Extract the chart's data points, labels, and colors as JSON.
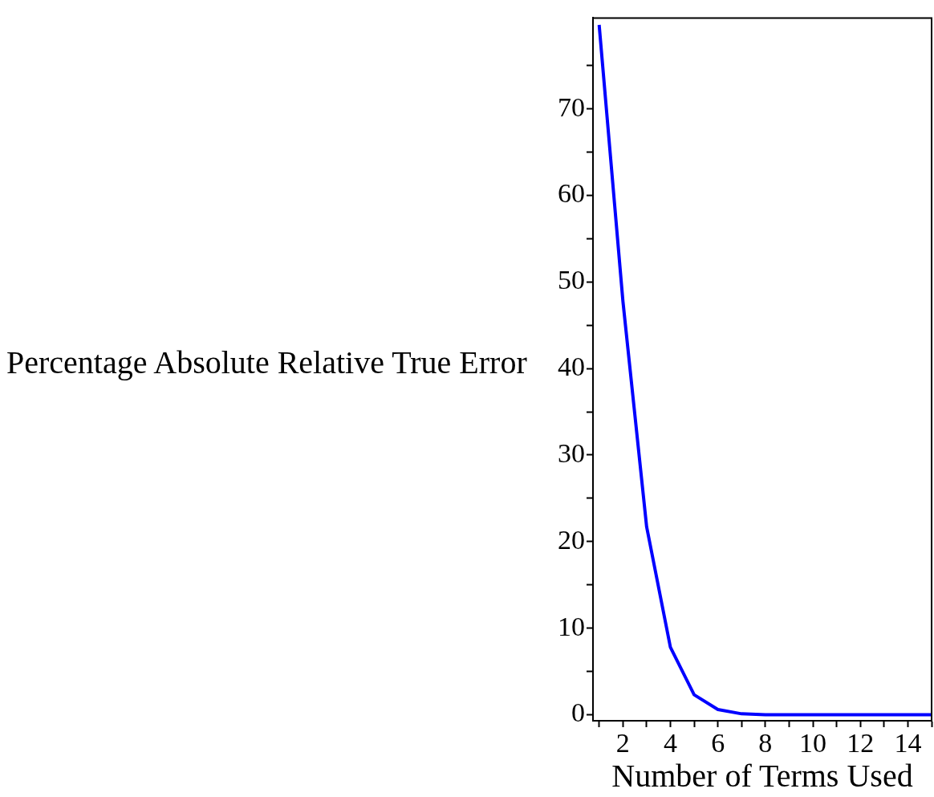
{
  "chart_data": {
    "type": "line",
    "xlabel": "Number of Terms Used",
    "ylabel": "Percentage Absolute Relative True Error",
    "x": [
      1,
      2,
      3,
      4,
      5,
      6,
      7,
      8,
      9,
      10,
      11,
      12,
      13,
      14,
      15
    ],
    "series": [
      {
        "color": "#0000ff",
        "values": [
          79.7,
          47.8,
          21.7,
          7.8,
          2.3,
          0.6,
          0.1,
          0,
          0,
          0,
          0,
          0,
          0,
          0,
          0
        ]
      }
    ],
    "xlim": [
      0.74,
      15
    ],
    "ylim": [
      -0.7,
      80.5
    ],
    "xticks": [
      {
        "value": 1,
        "label": null
      },
      2,
      {
        "value": 3,
        "label": null
      },
      4,
      {
        "value": 5,
        "label": null
      },
      6,
      {
        "value": 7,
        "label": null
      },
      8,
      {
        "value": 9,
        "label": null
      },
      10,
      {
        "value": 11,
        "label": null
      },
      12,
      {
        "value": 13,
        "label": null
      },
      14,
      {
        "value": 15,
        "label": null
      }
    ],
    "yticks": [
      0,
      {
        "value": 5,
        "label": null
      },
      10,
      {
        "value": 15,
        "label": null
      },
      20,
      {
        "value": 25,
        "label": null
      },
      30,
      {
        "value": 35,
        "label": null
      },
      40,
      {
        "value": 45,
        "label": null
      },
      50,
      {
        "value": 55,
        "label": null
      },
      60,
      {
        "value": 65,
        "label": null
      },
      70,
      {
        "value": 75,
        "label": null
      }
    ],
    "grid": false,
    "legend": false
  }
}
